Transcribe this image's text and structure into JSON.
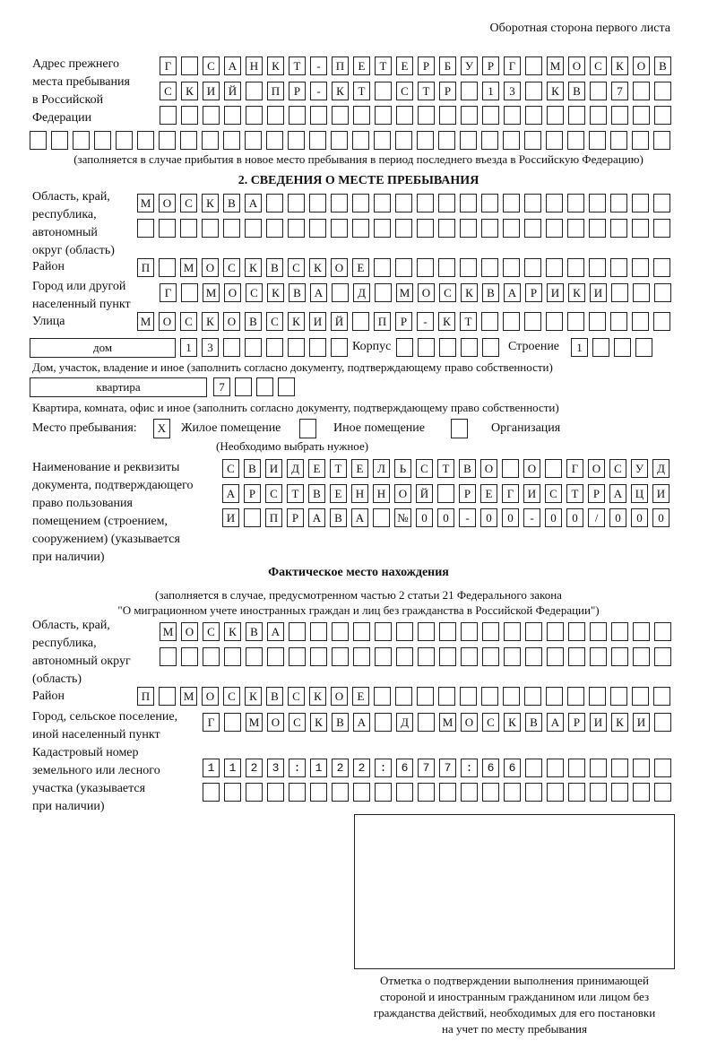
{
  "header": {
    "page_note": "Оборотная сторона первого листа"
  },
  "prev_address": {
    "label": [
      "Адрес прежнего",
      "места пребывания",
      "в Российской",
      "Федерации"
    ],
    "rows": [
      "Г САНКТ-ПЕТЕРБУРГ МОСКОВ",
      "СКИЙ ПР-КТ СТР 13 КВ 7  ",
      "                        ",
      "                              "
    ],
    "note": "(заполняется в случае прибытия в новое место пребывания в период последнего въезда в Российскую Федерацию)"
  },
  "section2": {
    "title": "2. СВЕДЕНИЯ О МЕСТЕ ПРЕБЫВАНИЯ",
    "region": {
      "label": [
        "Область, край,",
        "республика,",
        "автономный",
        "округ (область)"
      ],
      "rows": [
        "МОСКВА                   ",
        "                         "
      ]
    },
    "district": {
      "label": "Район",
      "row": "П МОСКВСКОЕ              "
    },
    "city": {
      "label": [
        "Город или другой",
        "населенный пункт"
      ],
      "row": "Г МОСКВА Д МОСКВАРИКИ   "
    },
    "street": {
      "label": "Улица",
      "row": "МОСКОВСКИЙ ПР-КТ         "
    },
    "house": {
      "type": "дом",
      "number": "13      ",
      "korpus_label": "Корпус",
      "korpus": "     ",
      "building_label": "Строение",
      "building": "1   ",
      "note": "Дом, участок, владение и иное (заполнить согласно документу, подтверждающему право собственности)"
    },
    "apartment": {
      "type": "квартира",
      "number": "7   ",
      "note": "Квартира, комната, офис и иное (заполнить согласно документу, подтверждающему право собственности)"
    },
    "stay_place": {
      "label": "Место пребывания:",
      "options": [
        {
          "label": "Жилое помещение",
          "mark": "X",
          "checked": true
        },
        {
          "label": "Иное помещение",
          "mark": "",
          "checked": false
        },
        {
          "label": "Организация",
          "mark": "",
          "checked": false
        }
      ],
      "note": "(Необходимо выбрать нужное)"
    },
    "document": {
      "label": [
        "Наименование и реквизиты",
        "документа, подтверждающего",
        "право пользования",
        "помещением (строением,",
        "сооружением) (указывается",
        "при наличии)"
      ],
      "rows": [
        "СВИДЕТЕЛЬСТВО О ГОСУД",
        "АРСТВЕННОЙ РЕГИСТРАЦИ",
        "И ПРАВА №00-00-00/000"
      ]
    }
  },
  "actual": {
    "title": "Фактическое место нахождения",
    "subtitle": [
      "(заполняется в случае, предусмотренном частью 2 статьи 21 Федерального закона",
      "\"О миграционном учете иностранных граждан и лиц без гражданства в Российской Федерации\")"
    ],
    "region": {
      "label": [
        "Область, край,",
        "республика,",
        "автономный округ",
        "(область)"
      ],
      "rows": [
        "МОСКВА                  ",
        "                        "
      ]
    },
    "district": {
      "label": "Район",
      "row": "П МОСКВСКОЕ              "
    },
    "city": {
      "label": [
        "Город, сельское поселение,",
        "иной населенный пункт"
      ],
      "row": "Г МОСКВА Д МОСКВАРИКИ "
    },
    "cadastral": {
      "label": [
        "Кадастровый номер",
        "земельного или лесного",
        "участка (указывается",
        "при наличии)"
      ],
      "rows": [
        "1123:122:677:66       ",
        "                      "
      ]
    }
  },
  "confirmation": {
    "caption": [
      "Отметка о подтверждении выполнения принимающей",
      "стороной и иностранным гражданином или лицом без",
      "гражданства действий, необходимых для его постановки",
      "на учет по месту пребывания"
    ]
  }
}
